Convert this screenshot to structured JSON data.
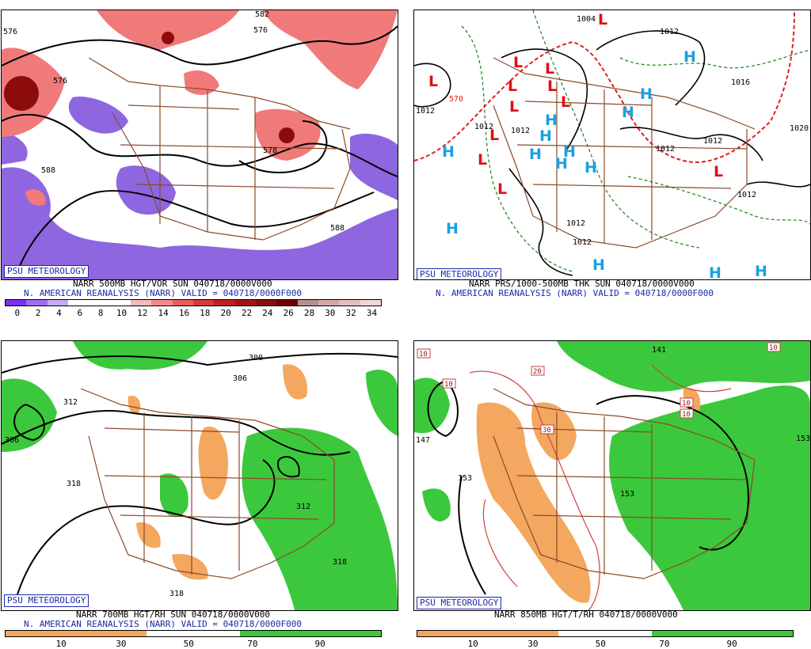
{
  "badge": "PSU METEOROLOGY",
  "panels": [
    {
      "line1": "NARR 500MB HGT/VOR SUN 040718/0000V000",
      "line2": "N. AMERICAN REANALYSIS (NARR) VALID = 040718/0000F000",
      "scale": [
        "0",
        "2",
        "4",
        "6",
        "8",
        "10",
        "12",
        "14",
        "16",
        "18",
        "20",
        "22",
        "24",
        "26",
        "28",
        "30",
        "32",
        "34"
      ],
      "scale_colors": [
        "#7b2ff0",
        "#9d6df5",
        "#c4a9f7",
        "#ffffff",
        "#ffffff",
        "#ffffff",
        "#f7b9b9",
        "#f28c8c",
        "#eb5d5d",
        "#d73a3a",
        "#c41f1f",
        "#a31515",
        "#8c0c0c",
        "#6e0000",
        "#b89090",
        "#d4a6a6",
        "#e6bcbc",
        "#f3d6d6"
      ],
      "contour_labels": [
        "576",
        "582",
        "576",
        "578",
        "588",
        "588",
        "576"
      ]
    },
    {
      "line1": "NARR PRS/1000-500MB THK SUN 040718/0000V000",
      "line2": "N. AMERICAN REANALYSIS (NARR) VALID = 040718/0000F000",
      "contour_labels": [
        "1004",
        "1012",
        "1012",
        "1012",
        "1012",
        "1012",
        "1012",
        "1012",
        "1012",
        "1012",
        "1016",
        "1020",
        "570"
      ],
      "lows": 12,
      "highs": 14
    },
    {
      "line1": "NARR 700MB HGT/RH SUN 040718/0000V000",
      "line2": "N. AMERICAN REANALYSIS (NARR) VALID = 040718/0000F000",
      "scale": [
        "10",
        "30",
        "50",
        "70",
        "90"
      ],
      "contour_labels": [
        "300",
        "306",
        "312",
        "306",
        "318",
        "312",
        "318",
        "318"
      ]
    },
    {
      "line1": "NARR 850MB HGT/T/RH 040718/0000V000",
      "scale": [
        "10",
        "30",
        "50",
        "70",
        "90"
      ],
      "contour_labels": [
        "147",
        "153",
        "153",
        "153",
        "141",
        "10",
        "10",
        "20",
        "30",
        "10",
        "10",
        "10"
      ]
    }
  ],
  "colors": {
    "border": "#8b4a2b",
    "caption_blue": "#1a2aa8",
    "rh_dry": "#f4a75e",
    "rh_moist": "#3cc83c",
    "vort_pos": "#f07a7a",
    "vort_neg": "#8e66e0",
    "high": "#1aa0e0",
    "low": "#e01010"
  }
}
